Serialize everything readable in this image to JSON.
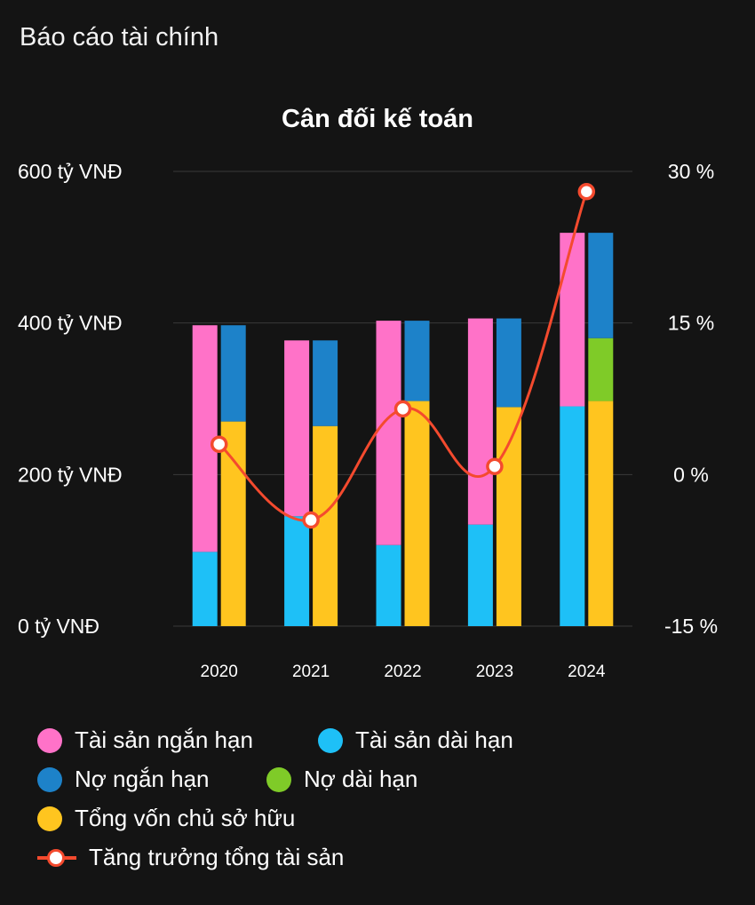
{
  "page": {
    "header": "Báo cáo tài chính"
  },
  "chart_data": {
    "type": "bar",
    "title": "Cân đối kế toán",
    "categories": [
      "2020",
      "2021",
      "2022",
      "2023",
      "2024"
    ],
    "y_left": {
      "ticks": [
        "0 tỷ VNĐ",
        "200 tỷ VNĐ",
        "400 tỷ VNĐ",
        "600 tỷ VNĐ"
      ],
      "range": [
        0,
        600
      ]
    },
    "y_right": {
      "ticks": [
        "-15 %",
        "0 %",
        "15 %",
        "30 %"
      ],
      "range": [
        -15,
        30
      ]
    },
    "grid": true,
    "stacks": [
      {
        "stack": "assets",
        "series": [
          {
            "name": "Tài sản dài hạn",
            "color": "#1ec0f7",
            "values": [
              98,
              145,
              107,
              134,
              290
            ]
          },
          {
            "name": "Tài sản ngắn hạn",
            "color": "#ff72c8",
            "values": [
              299,
              232,
              296,
              272,
              229
            ]
          }
        ]
      },
      {
        "stack": "liabilities_equity",
        "series": [
          {
            "name": "Tổng vốn chủ sở hữu",
            "color": "#ffc51f",
            "values": [
              270,
              264,
              297,
              289,
              297
            ]
          },
          {
            "name": "Nợ dài hạn",
            "color": "#7fcb28",
            "values": [
              0,
              0,
              0,
              0,
              83
            ]
          },
          {
            "name": "Nợ ngắn hạn",
            "color": "#1d82c9",
            "values": [
              127,
              113,
              106,
              117,
              139
            ]
          }
        ]
      }
    ],
    "line": {
      "name": "Tăng trưởng tổng tài sản",
      "color": "#f44a2e",
      "axis": "right",
      "values": [
        3.0,
        -4.5,
        6.5,
        0.8,
        28.0
      ]
    },
    "legend": {
      "position": "bottom",
      "items": [
        {
          "label": "Tài sản ngắn hạn",
          "color": "#ff72c8",
          "marker": "dot"
        },
        {
          "label": "Tài sản dài hạn",
          "color": "#1ec0f7",
          "marker": "dot"
        },
        {
          "label": "Nợ ngắn hạn",
          "color": "#1d82c9",
          "marker": "dot"
        },
        {
          "label": "Nợ dài hạn",
          "color": "#7fcb28",
          "marker": "dot"
        },
        {
          "label": "Tổng vốn chủ sở hữu",
          "color": "#ffc51f",
          "marker": "dot"
        },
        {
          "label": "Tăng trưởng tổng tài sản",
          "color": "#f44a2e",
          "marker": "line"
        }
      ]
    }
  }
}
